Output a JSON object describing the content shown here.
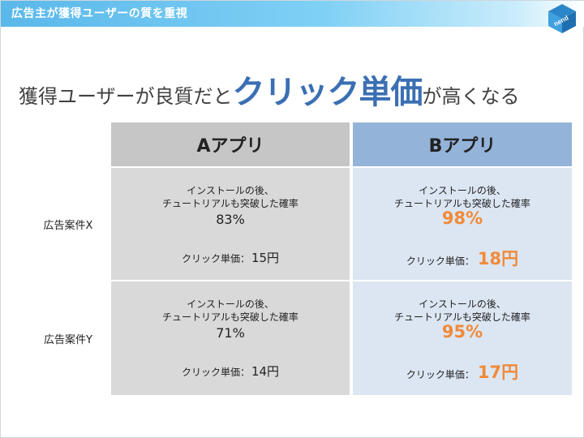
{
  "header": {
    "title": "広告主が獲得ユーザーの質を重視",
    "logo_text": "nend"
  },
  "headline": {
    "part1": "獲得ユーザーが良質だと",
    "emphasis": "クリック単価",
    "part2": "が高くなる"
  },
  "table": {
    "columns": [
      "Aアプリ",
      "Bアプリ"
    ],
    "rows": [
      {
        "label": "広告案件X",
        "a": {
          "desc_line1": "インストールの後、",
          "desc_line2": "チュートリアルも突破した確率",
          "rate": "83%",
          "cpc_label": "クリック単価：",
          "cpc_value": "15円"
        },
        "b": {
          "desc_line1": "インストールの後、",
          "desc_line2": "チュートリアルも突破した確率",
          "rate": "98%",
          "cpc_label": "クリック単価：",
          "cpc_value": "18円"
        }
      },
      {
        "label": "広告案件Y",
        "a": {
          "desc_line1": "インストールの後、",
          "desc_line2": "チュートリアルも突破した確率",
          "rate": "71%",
          "cpc_label": "クリック単価：",
          "cpc_value": "14円"
        },
        "b": {
          "desc_line1": "インストールの後、",
          "desc_line2": "チュートリアルも突破した確率",
          "rate": "95%",
          "cpc_label": "クリック単価：",
          "cpc_value": "17円"
        }
      }
    ]
  },
  "colors": {
    "header_bar": "#5ab8ea",
    "headline_emphasis": "#3b6fb3",
    "column_a_header": "#c6c6c6",
    "column_b_header": "#94b3d9",
    "column_a_cell": "#d9d9d9",
    "column_b_cell": "#dce6f2",
    "highlight_value": "#f08a3a"
  }
}
